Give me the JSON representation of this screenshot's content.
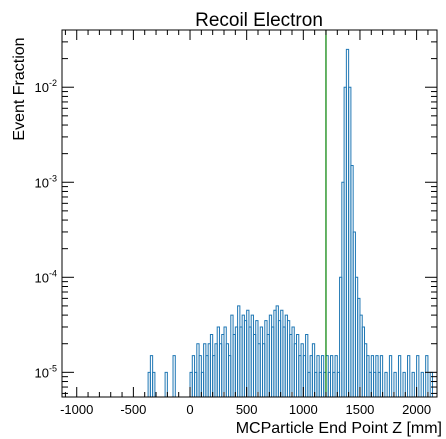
{
  "chart_data": {
    "type": "histogram",
    "title": "Recoil Electron",
    "xlabel": "MCParticle End Point Z [mm]",
    "ylabel": "Event Fraction",
    "xlim": [
      -1130,
      2180
    ],
    "ylim": [
      5.5e-06,
      0.04
    ],
    "y_scale": "log",
    "x_tick_labels": [
      "-1000",
      "-500",
      "0",
      "500",
      "1000",
      "1500",
      "2000"
    ],
    "x_tick_values": [
      -1000,
      -500,
      0,
      500,
      1000,
      1500,
      2000
    ],
    "y_tick_labels": [
      {
        "base": "10",
        "exp": "-5",
        "value": 1e-05
      },
      {
        "base": "10",
        "exp": "-4",
        "value": 0.0001
      },
      {
        "base": "10",
        "exp": "-3",
        "value": 0.001
      },
      {
        "base": "10",
        "exp": "-2",
        "value": 0.01
      }
    ],
    "histogram_color": "#1f77b4",
    "marker_line": {
      "x": 1200,
      "color": "#008000"
    },
    "bins": [
      {
        "x": -370,
        "y": 1e-05
      },
      {
        "x": -350,
        "y": 1.5e-05
      },
      {
        "x": -330,
        "y": 1e-05
      },
      {
        "x": -220,
        "y": 1e-05
      },
      {
        "x": -150,
        "y": 1.5e-05
      },
      {
        "x": 0,
        "y": 1e-05
      },
      {
        "x": 20,
        "y": 1.5e-05
      },
      {
        "x": 40,
        "y": 1e-05
      },
      {
        "x": 60,
        "y": 2e-05
      },
      {
        "x": 80,
        "y": 1.5e-05
      },
      {
        "x": 100,
        "y": 1e-05
      },
      {
        "x": 120,
        "y": 2e-05
      },
      {
        "x": 140,
        "y": 1.5e-05
      },
      {
        "x": 160,
        "y": 2e-05
      },
      {
        "x": 180,
        "y": 2.5e-05
      },
      {
        "x": 200,
        "y": 1.5e-05
      },
      {
        "x": 220,
        "y": 2e-05
      },
      {
        "x": 240,
        "y": 3e-05
      },
      {
        "x": 260,
        "y": 2e-05
      },
      {
        "x": 280,
        "y": 2.5e-05
      },
      {
        "x": 300,
        "y": 3e-05
      },
      {
        "x": 320,
        "y": 2e-05
      },
      {
        "x": 340,
        "y": 1.5e-05
      },
      {
        "x": 360,
        "y": 4e-05
      },
      {
        "x": 380,
        "y": 2.5e-05
      },
      {
        "x": 400,
        "y": 3e-05
      },
      {
        "x": 420,
        "y": 5e-05
      },
      {
        "x": 440,
        "y": 3e-05
      },
      {
        "x": 460,
        "y": 4e-05
      },
      {
        "x": 480,
        "y": 3.5e-05
      },
      {
        "x": 500,
        "y": 4.5e-05
      },
      {
        "x": 520,
        "y": 3e-05
      },
      {
        "x": 540,
        "y": 4e-05
      },
      {
        "x": 560,
        "y": 2.5e-05
      },
      {
        "x": 580,
        "y": 3.5e-05
      },
      {
        "x": 600,
        "y": 2e-05
      },
      {
        "x": 620,
        "y": 3e-05
      },
      {
        "x": 640,
        "y": 2e-05
      },
      {
        "x": 660,
        "y": 3.5e-05
      },
      {
        "x": 680,
        "y": 2.5e-05
      },
      {
        "x": 700,
        "y": 4e-05
      },
      {
        "x": 720,
        "y": 3e-05
      },
      {
        "x": 740,
        "y": 4.5e-05
      },
      {
        "x": 760,
        "y": 5e-05
      },
      {
        "x": 780,
        "y": 3.5e-05
      },
      {
        "x": 800,
        "y": 4.5e-05
      },
      {
        "x": 820,
        "y": 3e-05
      },
      {
        "x": 840,
        "y": 4e-05
      },
      {
        "x": 860,
        "y": 3.5e-05
      },
      {
        "x": 880,
        "y": 2.5e-05
      },
      {
        "x": 900,
        "y": 3e-05
      },
      {
        "x": 920,
        "y": 2e-05
      },
      {
        "x": 940,
        "y": 2.5e-05
      },
      {
        "x": 960,
        "y": 1.5e-05
      },
      {
        "x": 980,
        "y": 2e-05
      },
      {
        "x": 1000,
        "y": 1.5e-05
      },
      {
        "x": 1020,
        "y": 2.5e-05
      },
      {
        "x": 1040,
        "y": 1e-05
      },
      {
        "x": 1060,
        "y": 1.5e-05
      },
      {
        "x": 1080,
        "y": 2e-05
      },
      {
        "x": 1100,
        "y": 1e-05
      },
      {
        "x": 1120,
        "y": 1.5e-05
      },
      {
        "x": 1140,
        "y": 1e-05
      },
      {
        "x": 1160,
        "y": 1.5e-05
      },
      {
        "x": 1180,
        "y": 1e-05
      },
      {
        "x": 1200,
        "y": 1.5e-05
      },
      {
        "x": 1220,
        "y": 1e-05
      },
      {
        "x": 1240,
        "y": 1.5e-05
      },
      {
        "x": 1260,
        "y": 1e-05
      },
      {
        "x": 1280,
        "y": 1.5e-05
      },
      {
        "x": 1300,
        "y": 1e-05
      },
      {
        "x": 1320,
        "y": 0.0001
      },
      {
        "x": 1340,
        "y": 0.001
      },
      {
        "x": 1360,
        "y": 0.01
      },
      {
        "x": 1380,
        "y": 0.025
      },
      {
        "x": 1400,
        "y": 0.01
      },
      {
        "x": 1420,
        "y": 0.0015
      },
      {
        "x": 1440,
        "y": 0.0003
      },
      {
        "x": 1460,
        "y": 0.0001
      },
      {
        "x": 1480,
        "y": 6e-05
      },
      {
        "x": 1500,
        "y": 4e-05
      },
      {
        "x": 1520,
        "y": 3e-05
      },
      {
        "x": 1540,
        "y": 2e-05
      },
      {
        "x": 1560,
        "y": 1.5e-05
      },
      {
        "x": 1580,
        "y": 1e-05
      },
      {
        "x": 1600,
        "y": 1.5e-05
      },
      {
        "x": 1620,
        "y": 1e-05
      },
      {
        "x": 1640,
        "y": 1.5e-05
      },
      {
        "x": 1660,
        "y": 1e-05
      },
      {
        "x": 1680,
        "y": 1.5e-05
      },
      {
        "x": 1720,
        "y": 1e-05
      },
      {
        "x": 1760,
        "y": 1.5e-05
      },
      {
        "x": 1800,
        "y": 1e-05
      },
      {
        "x": 1840,
        "y": 1.5e-05
      },
      {
        "x": 1880,
        "y": 1e-05
      },
      {
        "x": 1920,
        "y": 1.5e-05
      },
      {
        "x": 1960,
        "y": 1e-05
      },
      {
        "x": 2000,
        "y": 1.5e-05
      },
      {
        "x": 2040,
        "y": 1e-05
      },
      {
        "x": 2080,
        "y": 1.5e-05
      },
      {
        "x": 2120,
        "y": 1e-05
      }
    ]
  }
}
